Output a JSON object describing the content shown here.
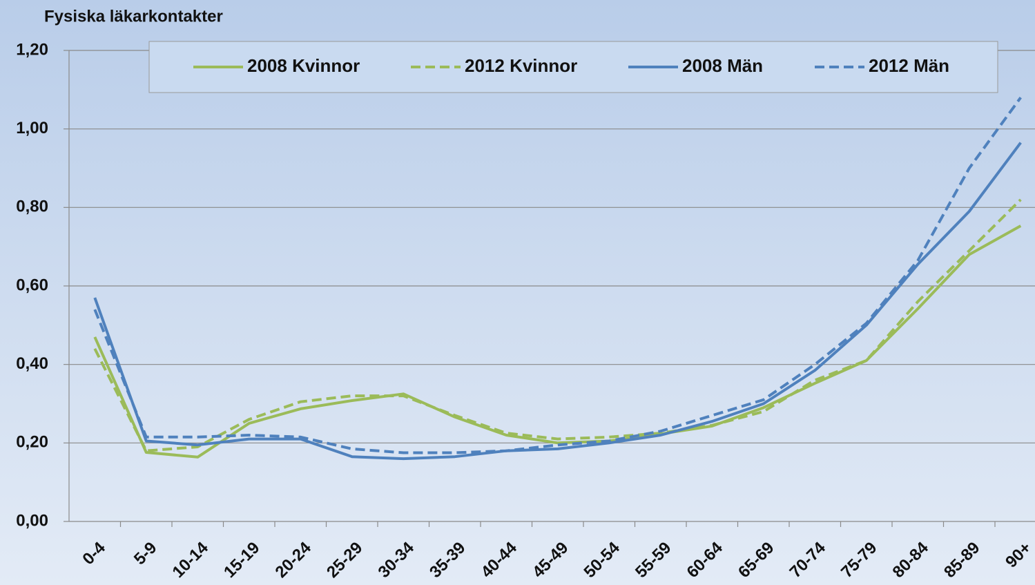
{
  "chart_data": {
    "type": "line",
    "title": "Fysiska läkarkontakter",
    "categories": [
      "0-4",
      "5-9",
      "10-14",
      "15-19",
      "20-24",
      "25-29",
      "30-34",
      "35-39",
      "40-44",
      "45-49",
      "50-54",
      "55-59",
      "60-64",
      "65-69",
      "70-74",
      "75-79",
      "80-84",
      "85-89",
      "90+"
    ],
    "series": [
      {
        "name": "2008 Kvinnor",
        "color": "#9bbb59",
        "dashed": false,
        "values": [
          0.47,
          0.176,
          0.164,
          0.25,
          0.287,
          0.308,
          0.325,
          0.266,
          0.22,
          0.2,
          0.205,
          0.223,
          0.243,
          0.29,
          0.352,
          0.41,
          0.542,
          0.68,
          0.753
        ]
      },
      {
        "name": "2012 Kvinnor",
        "color": "#9bbb59",
        "dashed": true,
        "values": [
          0.44,
          0.18,
          0.19,
          0.26,
          0.305,
          0.32,
          0.32,
          0.27,
          0.225,
          0.21,
          0.215,
          0.225,
          0.245,
          0.28,
          0.36,
          0.41,
          0.56,
          0.69,
          0.82
        ]
      },
      {
        "name": "2008 Män",
        "color": "#4f81bd",
        "dashed": false,
        "values": [
          0.57,
          0.205,
          0.195,
          0.21,
          0.21,
          0.165,
          0.16,
          0.165,
          0.18,
          0.185,
          0.2,
          0.22,
          0.255,
          0.3,
          0.385,
          0.5,
          0.655,
          0.79,
          0.965
        ]
      },
      {
        "name": "2012 Män",
        "color": "#4f81bd",
        "dashed": true,
        "values": [
          0.54,
          0.215,
          0.215,
          0.22,
          0.215,
          0.185,
          0.175,
          0.175,
          0.18,
          0.195,
          0.205,
          0.23,
          0.27,
          0.31,
          0.4,
          0.505,
          0.665,
          0.9,
          1.08
        ]
      }
    ],
    "ylim": [
      0,
      1.2
    ],
    "yticks": [
      {
        "value": 0,
        "label": "0,00"
      },
      {
        "value": 0.2,
        "label": "0,20"
      },
      {
        "value": 0.4,
        "label": "0,40"
      },
      {
        "value": 0.6,
        "label": "0,60"
      },
      {
        "value": 0.8,
        "label": "0,80"
      },
      {
        "value": 1.0,
        "label": "1,00"
      },
      {
        "value": 1.2,
        "label": "1,20"
      }
    ],
    "grid": true,
    "legend": "top"
  }
}
